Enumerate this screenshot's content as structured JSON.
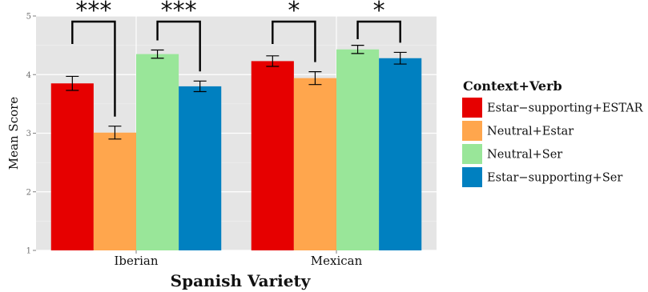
{
  "chart_data": {
    "type": "bar",
    "xlabel": "Spanish Variety",
    "ylabel": "Mean Score",
    "ylim": [
      1,
      5
    ],
    "yticks": [
      "1",
      "2",
      "3",
      "4",
      "5"
    ],
    "grid": true,
    "legend_title": "Context+Verb",
    "legend_position": "right",
    "categories": [
      "Iberian",
      "Mexican"
    ],
    "series": [
      {
        "name": "Estar−supporting+ESTAR",
        "color": "#e60000",
        "values": [
          3.85,
          4.23
        ],
        "error": [
          0.12,
          0.09
        ]
      },
      {
        "name": "Neutral+Estar",
        "color": "#ffa64d",
        "values": [
          3.01,
          3.94
        ],
        "error": [
          0.11,
          0.11
        ]
      },
      {
        "name": "Neutral+Ser",
        "color": "#99e699",
        "values": [
          4.35,
          4.43
        ],
        "error": [
          0.07,
          0.07
        ]
      },
      {
        "name": "Estar−supporting+Ser",
        "color": "#0080c0",
        "values": [
          3.8,
          4.28
        ],
        "error": [
          0.09,
          0.1
        ]
      }
    ],
    "significance": [
      {
        "category": 0,
        "from_series": 0,
        "to_series": 1,
        "label": "***"
      },
      {
        "category": 0,
        "from_series": 2,
        "to_series": 3,
        "label": "***"
      },
      {
        "category": 1,
        "from_series": 0,
        "to_series": 1,
        "label": "*"
      },
      {
        "category": 1,
        "from_series": 2,
        "to_series": 3,
        "label": "*"
      }
    ]
  }
}
